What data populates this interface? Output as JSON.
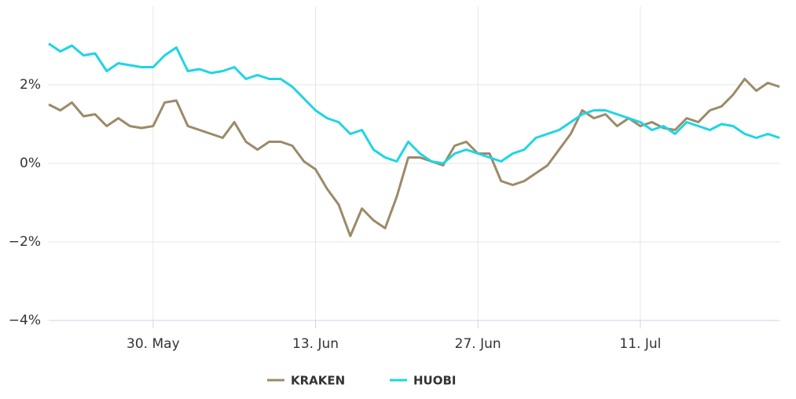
{
  "chart_data": {
    "type": "line",
    "x": [
      "21. May",
      "22. May",
      "23. May",
      "24. May",
      "25. May",
      "26. May",
      "27. May",
      "28. May",
      "29. May",
      "30. May",
      "31. May",
      "1. Jun",
      "2. Jun",
      "3. Jun",
      "4. Jun",
      "5. Jun",
      "6. Jun",
      "7. Jun",
      "8. Jun",
      "9. Jun",
      "10. Jun",
      "11. Jun",
      "12. Jun",
      "13. Jun",
      "14. Jun",
      "15. Jun",
      "16. Jun",
      "17. Jun",
      "18. Jun",
      "19. Jun",
      "20. Jun",
      "21. Jun",
      "22. Jun",
      "23. Jun",
      "24. Jun",
      "25. Jun",
      "26. Jun",
      "27. Jun",
      "28. Jun",
      "29. Jun",
      "30. Jun",
      "1. Jul",
      "2. Jul",
      "3. Jul",
      "4. Jul",
      "5. Jul",
      "6. Jul",
      "7. Jul",
      "8. Jul",
      "9. Jul",
      "10. Jul",
      "11. Jul",
      "12. Jul",
      "13. Jul",
      "14. Jul",
      "15. Jul",
      "16. Jul",
      "17. Jul",
      "18. Jul",
      "19. Jul",
      "20. Jul",
      "21. Jul",
      "22. Jul",
      "23. Jul"
    ],
    "xticks": [
      "30. May",
      "13. Jun",
      "27. Jun",
      "11. Jul"
    ],
    "series": [
      {
        "name": "KRAKEN",
        "color": "#9c8a68",
        "values": [
          1.5,
          1.35,
          1.55,
          1.2,
          1.25,
          0.95,
          1.15,
          0.95,
          0.9,
          0.95,
          1.55,
          1.6,
          0.95,
          0.85,
          0.75,
          0.65,
          1.05,
          0.55,
          0.35,
          0.55,
          0.55,
          0.45,
          0.05,
          -0.15,
          -0.65,
          -1.05,
          -1.85,
          -1.15,
          -1.45,
          -1.65,
          -0.85,
          0.15,
          0.15,
          0.05,
          -0.05,
          0.45,
          0.55,
          0.25,
          0.25,
          -0.45,
          -0.55,
          -0.45,
          -0.25,
          -0.05,
          0.35,
          0.75,
          1.35,
          1.15,
          1.25,
          0.95,
          1.15,
          0.95,
          1.05,
          0.9,
          0.85,
          1.15,
          1.05,
          1.35,
          1.45,
          1.75,
          2.15,
          1.85,
          2.05,
          1.95
        ]
      },
      {
        "name": "HUOBI",
        "color": "#1ed5e3",
        "values": [
          3.05,
          2.85,
          3.0,
          2.75,
          2.8,
          2.35,
          2.55,
          2.5,
          2.45,
          2.45,
          2.75,
          2.95,
          2.35,
          2.4,
          2.3,
          2.35,
          2.45,
          2.15,
          2.25,
          2.15,
          2.15,
          1.95,
          1.65,
          1.35,
          1.15,
          1.05,
          0.75,
          0.85,
          0.35,
          0.15,
          0.05,
          0.55,
          0.25,
          0.05,
          0,
          0.25,
          0.35,
          0.25,
          0.15,
          0.05,
          0.25,
          0.35,
          0.65,
          0.75,
          0.85,
          1.05,
          1.25,
          1.35,
          1.35,
          1.25,
          1.15,
          1.05,
          0.85,
          0.95,
          0.75,
          1.05,
          0.95,
          0.85,
          1.0,
          0.95,
          0.75,
          0.65,
          0.75,
          0.65
        ]
      }
    ],
    "ylim": [
      -4,
      4
    ],
    "yticks": [
      {
        "value": -4,
        "label": "−4%"
      },
      {
        "value": -2,
        "label": "−2%"
      },
      {
        "value": 0,
        "label": "0%"
      },
      {
        "value": 2,
        "label": "2%"
      }
    ],
    "grid": true
  }
}
